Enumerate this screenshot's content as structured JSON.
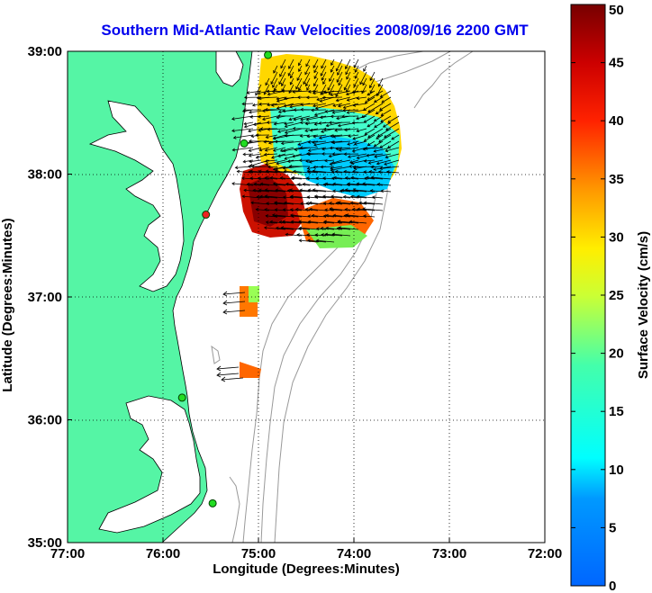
{
  "title": "Southern Mid-Atlantic Raw Velocities 2008/09/16 2200 GMT",
  "xlabel": "Longitude (Degrees:Minutes)",
  "ylabel": "Latitude (Degrees:Minutes)",
  "colorbar": {
    "label": "Surface Velocity (cm/s)",
    "min": 0,
    "max": 50,
    "ticks": [
      "0",
      "5",
      "10",
      "15",
      "20",
      "25",
      "30",
      "35",
      "40",
      "45",
      "50"
    ]
  },
  "axes": {
    "lon_range": [
      -77,
      -72
    ],
    "lat_range": [
      35,
      39
    ],
    "x_ticks": [
      {
        "value": -77,
        "label": "77:00"
      },
      {
        "value": -76,
        "label": "76:00"
      },
      {
        "value": -75,
        "label": "75:00"
      },
      {
        "value": -74,
        "label": "74:00"
      },
      {
        "value": -73,
        "label": "73:00"
      },
      {
        "value": -72,
        "label": "72:00"
      }
    ],
    "y_ticks": [
      {
        "value": 35,
        "label": "35:00"
      },
      {
        "value": 36,
        "label": "36:00"
      },
      {
        "value": 37,
        "label": "37:00"
      },
      {
        "value": 38,
        "label": "38:00"
      },
      {
        "value": 39,
        "label": "39:00"
      }
    ],
    "grid": "dotted"
  },
  "colors": {
    "land": "#55f5a5",
    "land_outline": "#000000",
    "bathymetry": "#999999",
    "title": "#0000ee",
    "station_green": "#22dd22",
    "station_red": "#ee2222"
  },
  "chart_data": {
    "type": "map",
    "stations": [
      {
        "lon": -74.9,
        "lat": 38.97,
        "color": "green"
      },
      {
        "lon": -75.15,
        "lat": 38.25,
        "color": "green"
      },
      {
        "lon": -75.55,
        "lat": 37.67,
        "color": "red"
      },
      {
        "lon": -75.8,
        "lat": 36.18,
        "color": "green"
      },
      {
        "lon": -75.48,
        "lat": 35.32,
        "color": "green"
      }
    ]
  }
}
